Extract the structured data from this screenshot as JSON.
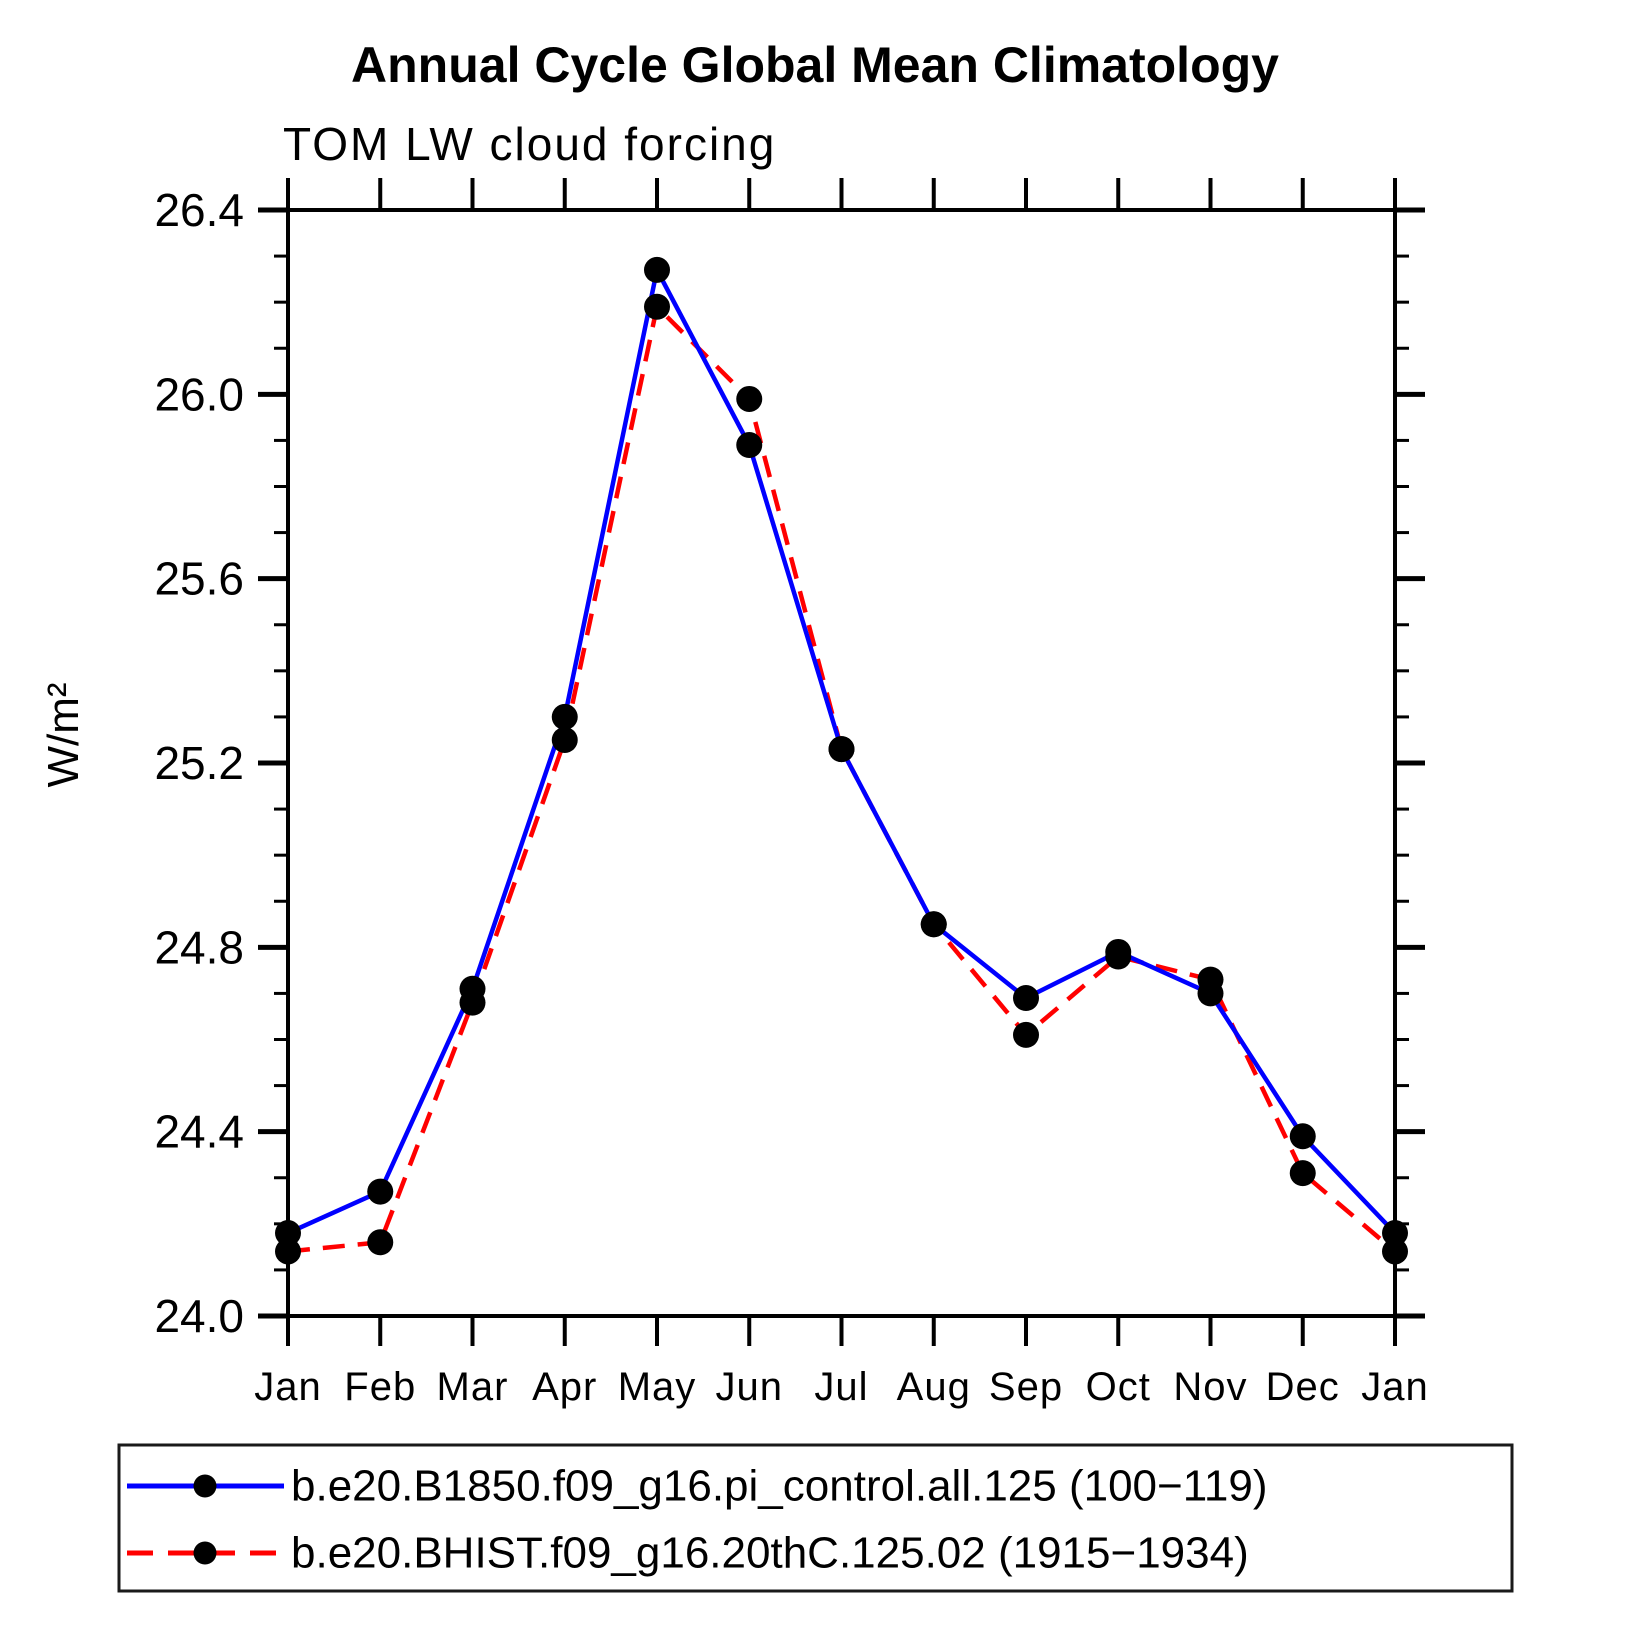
{
  "chart_data": {
    "type": "line",
    "title": "Annual Cycle Global Mean Climatology",
    "subtitle": "TOM LW cloud forcing",
    "ylabel": "W/m²",
    "xlabel": "",
    "categories": [
      "Jan",
      "Feb",
      "Mar",
      "Apr",
      "May",
      "Jun",
      "Jul",
      "Aug",
      "Sep",
      "Oct",
      "Nov",
      "Dec",
      "Jan"
    ],
    "ylim": [
      24.0,
      26.4
    ],
    "ytick_major_step": 0.4,
    "ytick_minor_step": 0.1,
    "ytick_labels": [
      "24.0",
      "24.4",
      "24.8",
      "25.2",
      "25.6",
      "26.0",
      "26.4"
    ],
    "grid": false,
    "legend_position": "bottom",
    "series": [
      {
        "name": "b.e20.B1850.f09_g16.pi_control.all.125 (100−119)",
        "color": "#0000ff",
        "line_style": "solid",
        "marker": "circle",
        "marker_color": "#000000",
        "values": [
          24.18,
          24.27,
          24.71,
          25.3,
          26.27,
          25.89,
          25.23,
          24.85,
          24.69,
          24.79,
          24.7,
          24.39,
          24.18
        ]
      },
      {
        "name": "b.e20.BHIST.f09_g16.20thC.125.02 (1915−1934)",
        "color": "#ff0000",
        "line_style": "dashed",
        "marker": "circle",
        "marker_color": "#000000",
        "values": [
          24.14,
          24.16,
          24.68,
          25.25,
          26.19,
          25.99,
          25.23,
          24.85,
          24.61,
          24.78,
          24.73,
          24.31,
          24.14
        ]
      }
    ]
  },
  "colors": {
    "axis": "#000000",
    "text": "#000000",
    "background": "#ffffff",
    "series_blue": "#0000ff",
    "series_red": "#ff0000",
    "marker": "#000000"
  }
}
